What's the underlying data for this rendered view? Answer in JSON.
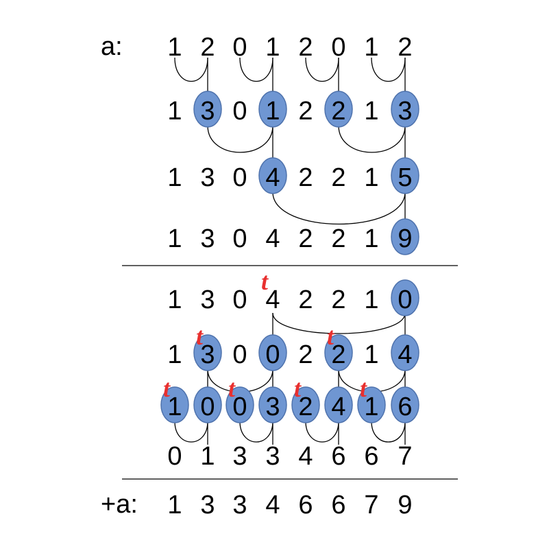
{
  "colors": {
    "highlight_fill": "#6f96d2",
    "highlight_stroke": "#4f73ad",
    "line": "#000000",
    "t_mark": "#e8302f"
  },
  "labels": {
    "input": "a:",
    "result": "+a:"
  },
  "t_marker": "t",
  "up_sweep": [
    {
      "digits": [
        "1",
        "2",
        "0",
        "1",
        "2",
        "0",
        "1",
        "2"
      ],
      "highlighted": []
    },
    {
      "digits": [
        "1",
        "3",
        "0",
        "1",
        "2",
        "2",
        "1",
        "3"
      ],
      "highlighted": [
        1,
        3,
        5,
        7
      ]
    },
    {
      "digits": [
        "1",
        "3",
        "0",
        "4",
        "2",
        "2",
        "1",
        "5"
      ],
      "highlighted": [
        3,
        7
      ]
    },
    {
      "digits": [
        "1",
        "3",
        "0",
        "4",
        "2",
        "2",
        "1",
        "9"
      ],
      "highlighted": [
        7
      ]
    }
  ],
  "down_sweep": [
    {
      "digits": [
        "1",
        "3",
        "0",
        "4",
        "2",
        "2",
        "1",
        "0"
      ],
      "highlighted": [
        7
      ],
      "t_at": [
        3
      ]
    },
    {
      "digits": [
        "1",
        "3",
        "0",
        "0",
        "2",
        "2",
        "1",
        "4"
      ],
      "highlighted": [
        1,
        3,
        5,
        7
      ],
      "t_at": [
        1,
        5
      ]
    },
    {
      "digits": [
        "1",
        "0",
        "0",
        "3",
        "2",
        "4",
        "1",
        "6"
      ],
      "highlighted": [
        0,
        1,
        2,
        3,
        4,
        5,
        6,
        7
      ],
      "t_at": [
        0,
        2,
        4,
        6
      ]
    },
    {
      "digits": [
        "0",
        "1",
        "3",
        "3",
        "4",
        "6",
        "6",
        "7"
      ],
      "highlighted": [],
      "t_at": []
    }
  ],
  "result": {
    "digits": [
      "1",
      "3",
      "3",
      "4",
      "6",
      "6",
      "7",
      "9"
    ]
  }
}
